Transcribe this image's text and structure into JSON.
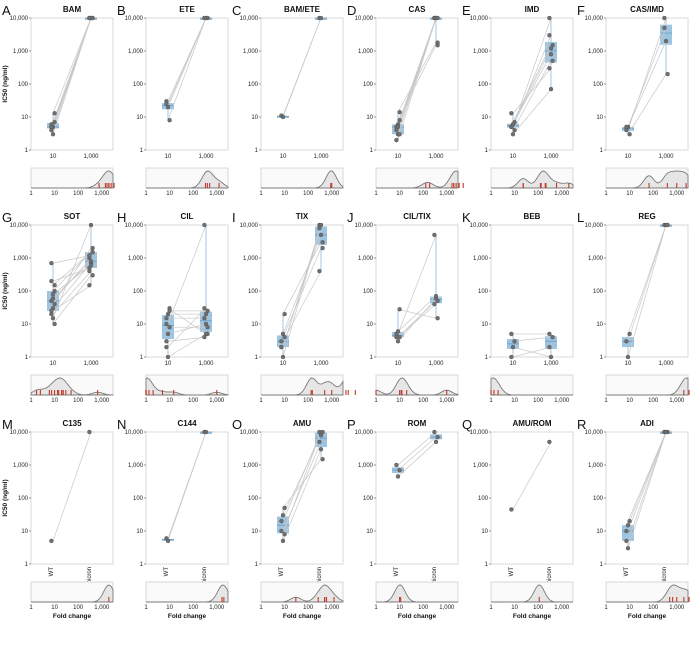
{
  "chart_data": {
    "type": "box-strip-with-density",
    "y_axis": {
      "label": "IC50 (ng/ml)",
      "scale": "log",
      "range": [
        1,
        10000
      ],
      "ticks": [
        "1",
        "10",
        "100",
        "1,000",
        "10,000"
      ]
    },
    "x_categories": [
      "WT",
      "Omicron"
    ],
    "fold_axis": {
      "label": "Fold change",
      "scale": "log",
      "range": [
        1,
        3000
      ],
      "ticks": [
        "1",
        "10",
        "100",
        "1,000"
      ]
    },
    "colors": {
      "box": "#9fc4e0",
      "point": "#6f6f6f",
      "line": "#c8c8c8",
      "rug": "#c0392b",
      "density_fill": "#e6e6e6",
      "density_line": "#7a7a7a"
    },
    "panels": [
      {
        "letter": "A",
        "title": "BAM",
        "wt": [
          6,
          5,
          13,
          4,
          3,
          7,
          5
        ],
        "om": [
          10000,
          10000,
          10000,
          10000,
          10000,
          10000,
          10000
        ]
      },
      {
        "letter": "B",
        "title": "ETE",
        "wt": [
          30,
          20,
          8,
          25
        ],
        "om": [
          10000,
          10000,
          10000,
          10000
        ]
      },
      {
        "letter": "C",
        "title": "BAM/ETE",
        "wt": [
          11,
          10
        ],
        "om": [
          10000,
          10000
        ]
      },
      {
        "letter": "D",
        "title": "CAS",
        "wt": [
          5,
          3,
          14,
          4,
          6,
          8,
          2,
          5,
          3
        ],
        "om": [
          10000,
          10000,
          1800,
          10000,
          10000,
          1500,
          10000,
          10000,
          10000
        ]
      },
      {
        "letter": "E",
        "title": "IMD",
        "wt": [
          5,
          6,
          4,
          13,
          3,
          7,
          5,
          6
        ],
        "om": [
          10000,
          1200,
          500,
          300,
          70,
          1500,
          3000,
          800
        ]
      },
      {
        "letter": "F",
        "title": "CAS/IMD",
        "wt": [
          4,
          5,
          3,
          5
        ],
        "om": [
          10000,
          2000,
          200,
          5000
        ]
      },
      {
        "letter": "G",
        "title": "SOT",
        "wt": [
          50,
          30,
          100,
          200,
          15,
          10,
          700,
          60,
          40,
          20,
          80,
          150,
          25
        ],
        "om": [
          1000,
          700,
          1500,
          500,
          10000,
          300,
          1200,
          800,
          2000,
          400,
          600,
          1500,
          150
        ]
      },
      {
        "letter": "H",
        "title": "CIL",
        "wt": [
          10,
          5,
          30,
          2,
          20,
          8,
          15,
          1,
          25,
          3
        ],
        "om": [
          10000,
          10,
          5,
          30,
          20,
          8,
          15,
          5,
          25,
          4
        ]
      },
      {
        "letter": "I",
        "title": "TIX",
        "wt": [
          2,
          5,
          20,
          3,
          1,
          4,
          2
        ],
        "om": [
          10000,
          5000,
          3000,
          400,
          10000,
          2000,
          8000
        ]
      },
      {
        "letter": "J",
        "title": "CIL/TIX",
        "wt": [
          5,
          3,
          28,
          4,
          6,
          4
        ],
        "om": [
          5000,
          60,
          15,
          40,
          70,
          50
        ]
      },
      {
        "letter": "K",
        "title": "BEB",
        "wt": [
          5,
          2,
          3,
          1
        ],
        "om": [
          5,
          1,
          4,
          2
        ]
      },
      {
        "letter": "L",
        "title": "REG",
        "wt": [
          3,
          1,
          5
        ],
        "om": [
          10000,
          10000,
          10000
        ]
      },
      {
        "letter": "M",
        "title": "C135",
        "wt": [
          5
        ],
        "om": [
          10000
        ]
      },
      {
        "letter": "N",
        "title": "C144",
        "wt": [
          6,
          5
        ],
        "om": [
          10000,
          10000
        ]
      },
      {
        "letter": "O",
        "title": "AMU",
        "wt": [
          20,
          5,
          50,
          10,
          30,
          8
        ],
        "om": [
          10000,
          3000,
          1500,
          5000,
          8000,
          10000
        ]
      },
      {
        "letter": "P",
        "title": "ROM",
        "wt": [
          1000,
          450,
          700
        ],
        "om": [
          10000,
          5000,
          7000
        ]
      },
      {
        "letter": "Q",
        "title": "AMU/ROM",
        "wt": [
          45
        ],
        "om": [
          5000
        ]
      },
      {
        "letter": "R",
        "title": "ADI",
        "wt": [
          10,
          3,
          20,
          5,
          15
        ],
        "om": [
          10000,
          10000,
          10000,
          10000,
          10000
        ]
      }
    ]
  }
}
